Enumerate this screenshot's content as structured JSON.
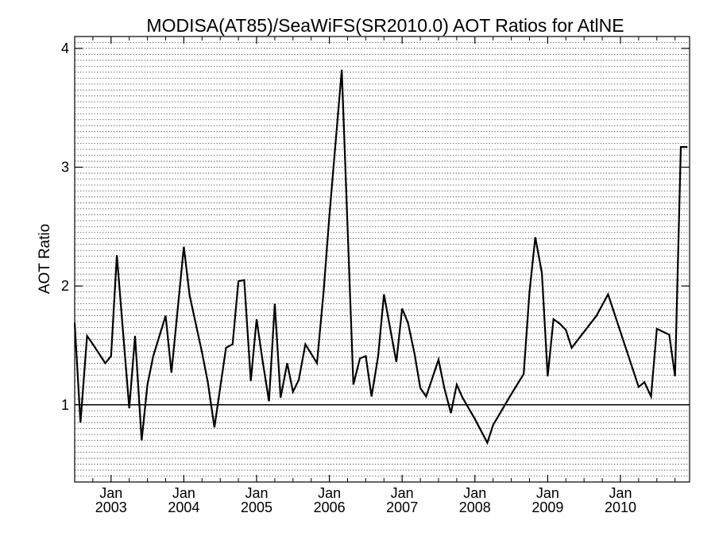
{
  "chart_data": {
    "type": "line",
    "title": "MODISA(AT85)/SeaWiFS(SR2010.0)  AOT Ratios for AtlNE",
    "xlabel": "",
    "ylabel": "AOT Ratio",
    "ylim": [
      0.35,
      4.1
    ],
    "y_ticks": [
      1,
      2,
      3,
      4
    ],
    "y_tick_labels": [
      "1",
      "2",
      "3",
      "4"
    ],
    "xlim": [
      2002.5,
      2010.95
    ],
    "x_ticks": [
      2003,
      2004,
      2005,
      2006,
      2007,
      2008,
      2009,
      2010
    ],
    "x_tick_labels": [
      {
        "month": "Jan",
        "year": "2003"
      },
      {
        "month": "Jan",
        "year": "2004"
      },
      {
        "month": "Jan",
        "year": "2005"
      },
      {
        "month": "Jan",
        "year": "2006"
      },
      {
        "month": "Jan",
        "year": "2007"
      },
      {
        "month": "Jan",
        "year": "2008"
      },
      {
        "month": "Jan",
        "year": "2009"
      },
      {
        "month": "Jan",
        "year": "2010"
      }
    ],
    "reference_line": 1.0,
    "grid": true,
    "series": [
      {
        "x": [
          2002.5,
          2002.58,
          2002.67,
          2002.75,
          2002.92,
          2003.0,
          2003.08,
          2003.17,
          2003.25,
          2003.33,
          2003.42,
          2003.5,
          2003.58,
          2003.75,
          2003.83,
          2004.0,
          2004.08,
          2004.25,
          2004.33,
          2004.42,
          2004.58,
          2004.67,
          2004.75,
          2004.83,
          2004.92,
          2005.0,
          2005.08,
          2005.17,
          2005.25,
          2005.33,
          2005.42,
          2005.5,
          2005.58,
          2005.67,
          2005.83,
          2005.92,
          2006.0,
          2006.17,
          2006.33,
          2006.42,
          2006.5,
          2006.58,
          2006.67,
          2006.75,
          2006.92,
          2007.0,
          2007.08,
          2007.17,
          2007.25,
          2007.33,
          2007.5,
          2007.58,
          2007.67,
          2007.75,
          2007.83,
          2008.0,
          2008.17,
          2008.25,
          2008.5,
          2008.67,
          2008.75,
          2008.83,
          2008.92,
          2009.0,
          2009.08,
          2009.17,
          2009.25,
          2009.33,
          2009.67,
          2009.83,
          2010.25,
          2010.33,
          2010.42,
          2010.5,
          2010.67,
          2010.75,
          2010.83,
          2010.92
        ],
        "y": [
          1.69,
          0.85,
          1.58,
          1.51,
          1.35,
          1.41,
          2.26,
          1.57,
          0.97,
          1.58,
          0.7,
          1.17,
          1.41,
          1.75,
          1.27,
          2.33,
          1.92,
          1.44,
          1.19,
          0.81,
          1.48,
          1.51,
          2.04,
          2.05,
          1.2,
          1.72,
          1.38,
          1.03,
          1.85,
          1.06,
          1.35,
          1.11,
          1.21,
          1.51,
          1.35,
          1.95,
          2.59,
          3.82,
          1.17,
          1.39,
          1.41,
          1.07,
          1.41,
          1.93,
          1.36,
          1.81,
          1.69,
          1.43,
          1.14,
          1.07,
          1.38,
          1.14,
          0.93,
          1.17,
          1.06,
          0.88,
          0.68,
          0.83,
          1.09,
          1.26,
          1.95,
          2.41,
          2.11,
          1.24,
          1.72,
          1.68,
          1.63,
          1.48,
          1.75,
          1.93,
          1.15,
          1.19,
          1.07,
          1.64,
          1.59,
          1.24,
          3.17,
          3.17
        ]
      }
    ]
  }
}
